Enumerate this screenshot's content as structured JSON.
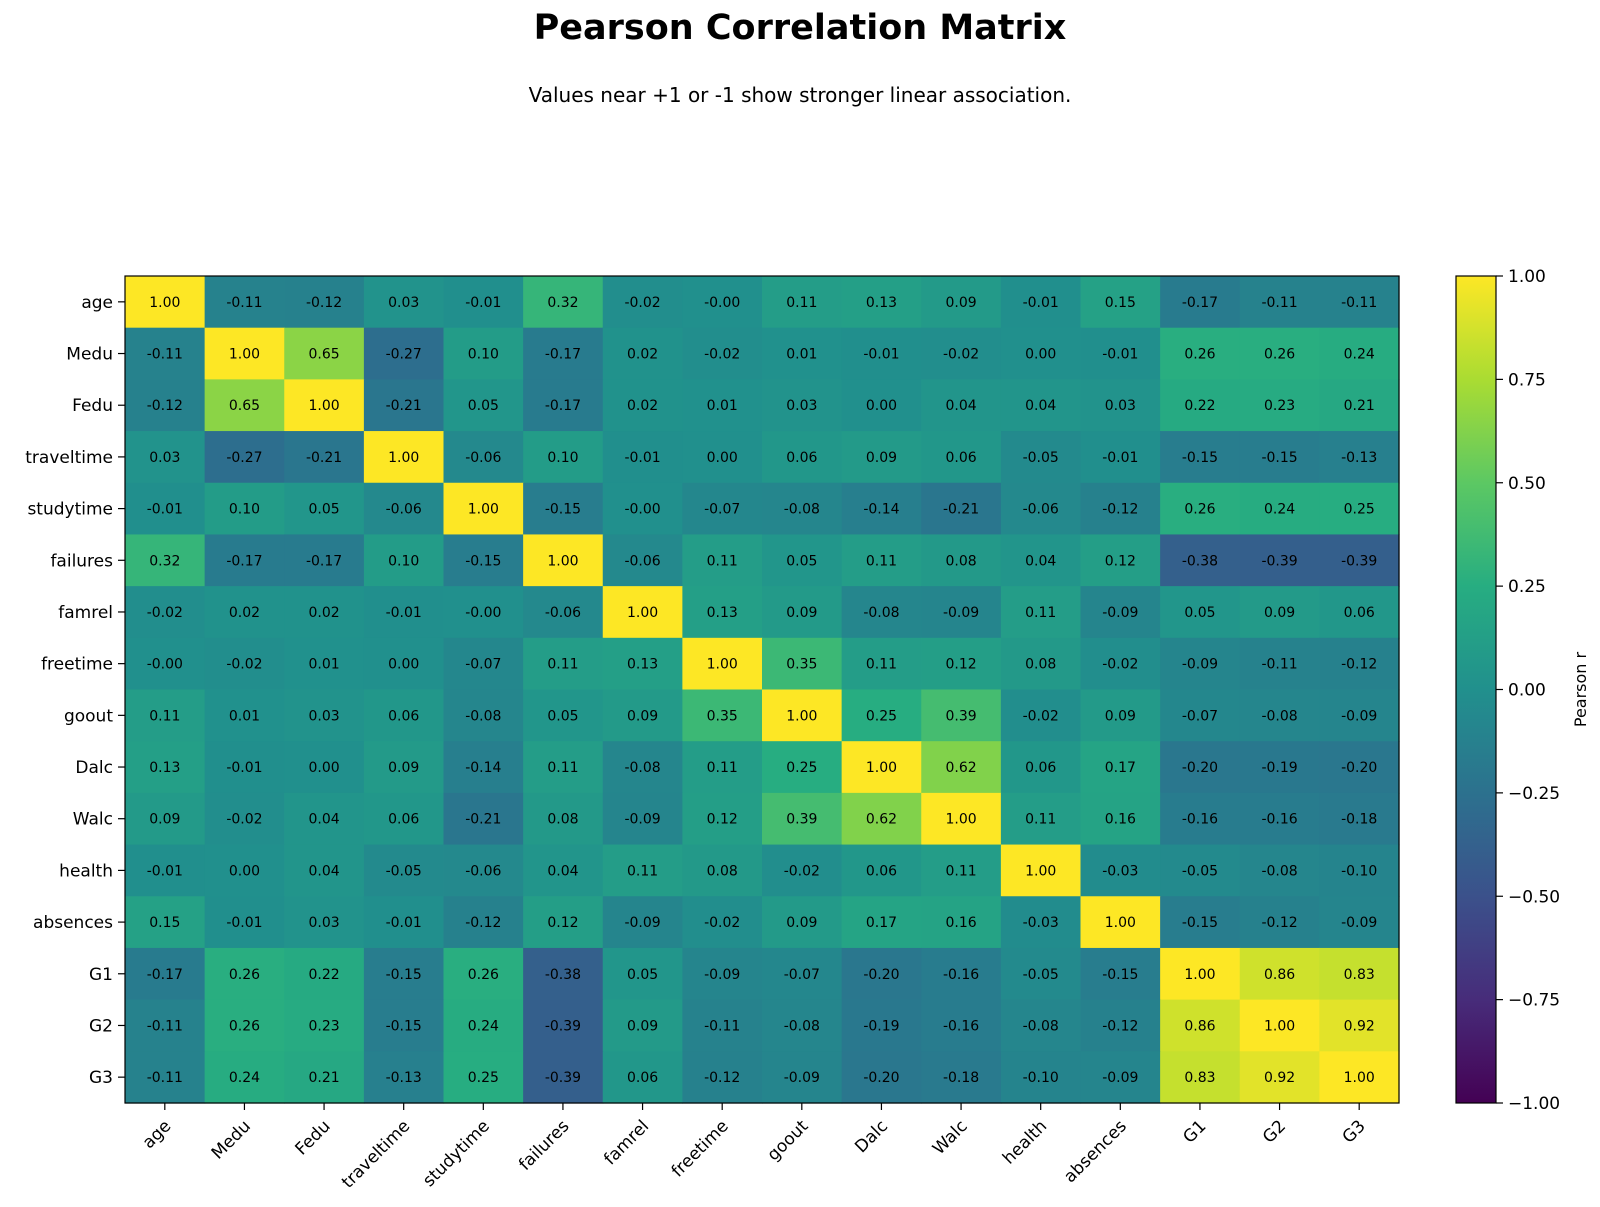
{
  "chart_data": {
    "type": "heatmap",
    "title": "Pearson Correlation Matrix",
    "subtitle": "Values near +1 or -1 show stronger linear association.",
    "colormap": "viridis",
    "vmin": -1.0,
    "vmax": 1.0,
    "colorbar_label": "Pearson r",
    "colorbar_ticks": [
      "1.00",
      "0.75",
      "0.50",
      "0.25",
      "0.00",
      "−0.25",
      "−0.50",
      "−0.75",
      "−1.00"
    ],
    "colorbar_tick_values": [
      1.0,
      0.75,
      0.5,
      0.25,
      0.0,
      -0.25,
      -0.5,
      -0.75,
      -1.0
    ],
    "labels": [
      "age",
      "Medu",
      "Fedu",
      "traveltime",
      "studytime",
      "failures",
      "famrel",
      "freetime",
      "goout",
      "Dalc",
      "Walc",
      "health",
      "absences",
      "G1",
      "G2",
      "G3"
    ],
    "cells": [
      [
        "1.00",
        "-0.11",
        "-0.12",
        "0.03",
        "-0.01",
        "0.32",
        "-0.02",
        "-0.00",
        "0.11",
        "0.13",
        "0.09",
        "-0.01",
        "0.15",
        "-0.17",
        "-0.11",
        "-0.11"
      ],
      [
        "-0.11",
        "1.00",
        "0.65",
        "-0.27",
        "0.10",
        "-0.17",
        "0.02",
        "-0.02",
        "0.01",
        "-0.01",
        "-0.02",
        "0.00",
        "-0.01",
        "0.26",
        "0.26",
        "0.24"
      ],
      [
        "-0.12",
        "0.65",
        "1.00",
        "-0.21",
        "0.05",
        "-0.17",
        "0.02",
        "0.01",
        "0.03",
        "0.00",
        "0.04",
        "0.04",
        "0.03",
        "0.22",
        "0.23",
        "0.21"
      ],
      [
        "0.03",
        "-0.27",
        "-0.21",
        "1.00",
        "-0.06",
        "0.10",
        "-0.01",
        "0.00",
        "0.06",
        "0.09",
        "0.06",
        "-0.05",
        "-0.01",
        "-0.15",
        "-0.15",
        "-0.13"
      ],
      [
        "-0.01",
        "0.10",
        "0.05",
        "-0.06",
        "1.00",
        "-0.15",
        "-0.00",
        "-0.07",
        "-0.08",
        "-0.14",
        "-0.21",
        "-0.06",
        "-0.12",
        "0.26",
        "0.24",
        "0.25"
      ],
      [
        "0.32",
        "-0.17",
        "-0.17",
        "0.10",
        "-0.15",
        "1.00",
        "-0.06",
        "0.11",
        "0.05",
        "0.11",
        "0.08",
        "0.04",
        "0.12",
        "-0.38",
        "-0.39",
        "-0.39"
      ],
      [
        "-0.02",
        "0.02",
        "0.02",
        "-0.01",
        "-0.00",
        "-0.06",
        "1.00",
        "0.13",
        "0.09",
        "-0.08",
        "-0.09",
        "0.11",
        "-0.09",
        "0.05",
        "0.09",
        "0.06"
      ],
      [
        "-0.00",
        "-0.02",
        "0.01",
        "0.00",
        "-0.07",
        "0.11",
        "0.13",
        "1.00",
        "0.35",
        "0.11",
        "0.12",
        "0.08",
        "-0.02",
        "-0.09",
        "-0.11",
        "-0.12"
      ],
      [
        "0.11",
        "0.01",
        "0.03",
        "0.06",
        "-0.08",
        "0.05",
        "0.09",
        "0.35",
        "1.00",
        "0.25",
        "0.39",
        "-0.02",
        "0.09",
        "-0.07",
        "-0.08",
        "-0.09"
      ],
      [
        "0.13",
        "-0.01",
        "0.00",
        "0.09",
        "-0.14",
        "0.11",
        "-0.08",
        "0.11",
        "0.25",
        "1.00",
        "0.62",
        "0.06",
        "0.17",
        "-0.20",
        "-0.19",
        "-0.20"
      ],
      [
        "0.09",
        "-0.02",
        "0.04",
        "0.06",
        "-0.21",
        "0.08",
        "-0.09",
        "0.12",
        "0.39",
        "0.62",
        "1.00",
        "0.11",
        "0.16",
        "-0.16",
        "-0.16",
        "-0.18"
      ],
      [
        "-0.01",
        "0.00",
        "0.04",
        "-0.05",
        "-0.06",
        "0.04",
        "0.11",
        "0.08",
        "-0.02",
        "0.06",
        "0.11",
        "1.00",
        "-0.03",
        "-0.05",
        "-0.08",
        "-0.10"
      ],
      [
        "0.15",
        "-0.01",
        "0.03",
        "-0.01",
        "-0.12",
        "0.12",
        "-0.09",
        "-0.02",
        "0.09",
        "0.17",
        "0.16",
        "-0.03",
        "1.00",
        "-0.15",
        "-0.12",
        "-0.09"
      ],
      [
        "-0.17",
        "0.26",
        "0.22",
        "-0.15",
        "0.26",
        "-0.38",
        "0.05",
        "-0.09",
        "-0.07",
        "-0.20",
        "-0.16",
        "-0.05",
        "-0.15",
        "1.00",
        "0.86",
        "0.83"
      ],
      [
        "-0.11",
        "0.26",
        "0.23",
        "-0.15",
        "0.24",
        "-0.39",
        "0.09",
        "-0.11",
        "-0.08",
        "-0.19",
        "-0.16",
        "-0.08",
        "-0.12",
        "0.86",
        "1.00",
        "0.92"
      ],
      [
        "-0.11",
        "0.24",
        "0.21",
        "-0.13",
        "0.25",
        "-0.39",
        "0.06",
        "-0.12",
        "-0.09",
        "-0.20",
        "-0.18",
        "-0.10",
        "-0.09",
        "0.83",
        "0.92",
        "1.00"
      ]
    ]
  }
}
